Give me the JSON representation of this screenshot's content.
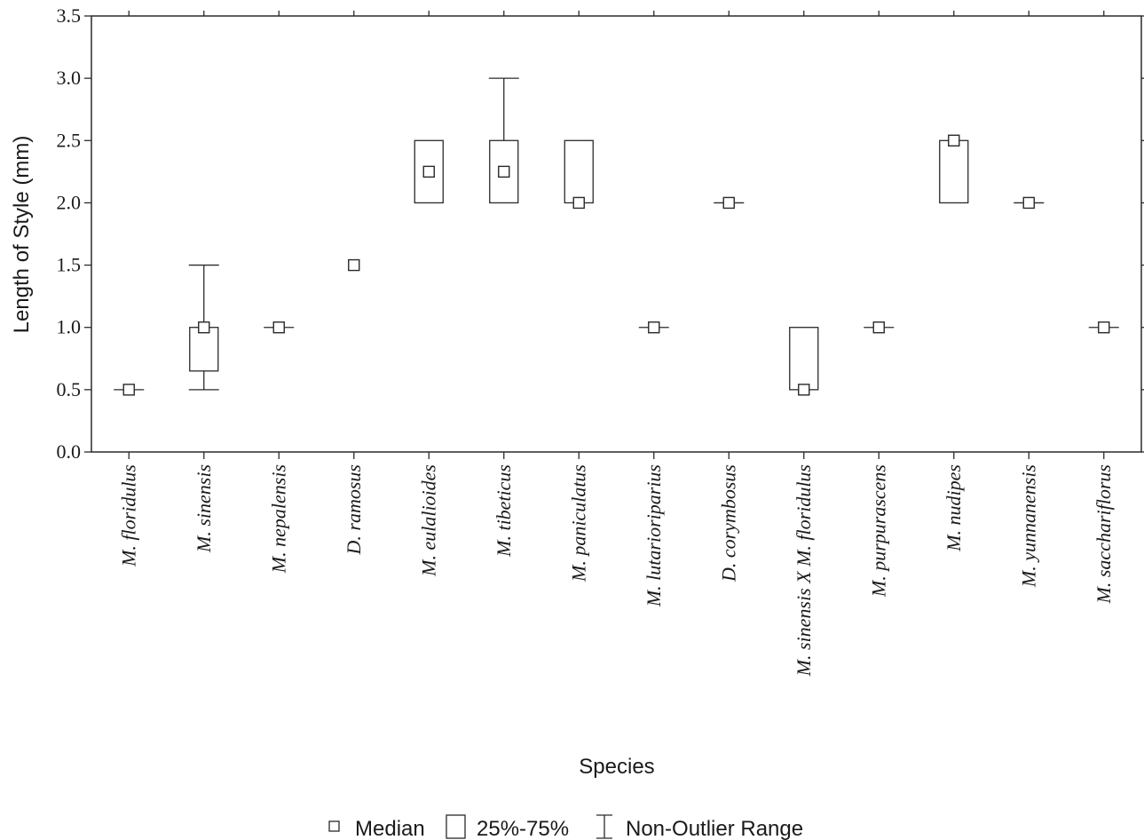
{
  "chart_data": {
    "type": "boxplot",
    "xlabel": "Species",
    "ylabel": "Length of Style (mm)",
    "ylim": [
      0,
      3.5
    ],
    "yticks": [
      "0.0",
      "0.5",
      "1.0",
      "1.5",
      "2.0",
      "2.5",
      "3.0",
      "3.5"
    ],
    "grid": false,
    "legend_position": "bottom",
    "legend": [
      {
        "key": "median",
        "label": "Median"
      },
      {
        "key": "box",
        "label": "25%-75%"
      },
      {
        "key": "whisker",
        "label": "Non-Outlier Range"
      }
    ],
    "categories": [
      {
        "label": "M. floridulus",
        "median": 0.5,
        "q1": 0.5,
        "q3": 0.5,
        "min": 0.5,
        "max": 0.5
      },
      {
        "label": "M. sinensis",
        "median": 1.0,
        "q1": 0.65,
        "q3": 1.0,
        "min": 0.5,
        "max": 1.5
      },
      {
        "label": "M. nepalensis",
        "median": 1.0,
        "q1": 1.0,
        "q3": 1.0,
        "min": 1.0,
        "max": 1.0
      },
      {
        "label": "D. ramosus",
        "median": 1.5,
        "q1": 1.5,
        "q3": 1.5,
        "min": 1.5,
        "max": 1.5
      },
      {
        "label": "M. eulalioides",
        "median": 2.25,
        "q1": 2.0,
        "q3": 2.5,
        "min": 2.0,
        "max": 2.5
      },
      {
        "label": "M. tibeticus",
        "median": 2.25,
        "q1": 2.0,
        "q3": 2.5,
        "min": 2.0,
        "max": 3.0
      },
      {
        "label": "M. paniculatus",
        "median": 2.0,
        "q1": 2.0,
        "q3": 2.5,
        "min": 2.0,
        "max": 2.5
      },
      {
        "label": "M. lutarioriparius",
        "median": 1.0,
        "q1": 1.0,
        "q3": 1.0,
        "min": 1.0,
        "max": 1.0
      },
      {
        "label": "D. corymbosus",
        "median": 2.0,
        "q1": 2.0,
        "q3": 2.0,
        "min": 2.0,
        "max": 2.0
      },
      {
        "label": "M. sinensis X M. floridulus",
        "median": 0.5,
        "q1": 0.5,
        "q3": 1.0,
        "min": 0.5,
        "max": 1.0
      },
      {
        "label": "M. purpurascens",
        "median": 1.0,
        "q1": 1.0,
        "q3": 1.0,
        "min": 1.0,
        "max": 1.0
      },
      {
        "label": "M. nudipes",
        "median": 2.5,
        "q1": 2.0,
        "q3": 2.5,
        "min": 2.0,
        "max": 2.5
      },
      {
        "label": "M. yunnanensis",
        "median": 2.0,
        "q1": 2.0,
        "q3": 2.0,
        "min": 2.0,
        "max": 2.0
      },
      {
        "label": "M. sacchariflorus",
        "median": 1.0,
        "q1": 1.0,
        "q3": 1.0,
        "min": 1.0,
        "max": 1.0
      }
    ]
  }
}
